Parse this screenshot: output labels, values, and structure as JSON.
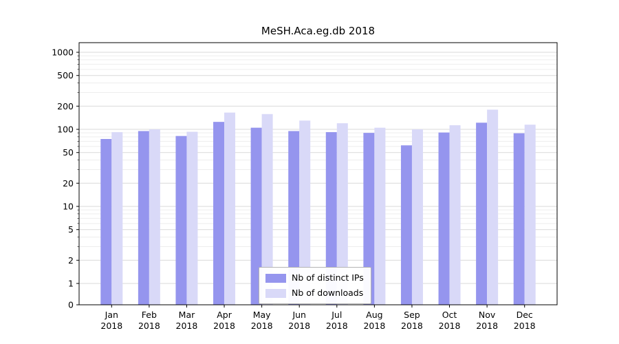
{
  "figure": {
    "background": "#ffffff",
    "text_color": "#000000",
    "major_grid_color": "#d9d9d9",
    "minor_grid_color": "#ededed",
    "spine_color": "#000000"
  },
  "chart_data": {
    "type": "bar",
    "title": "MeSH.Aca.eg.db 2018",
    "categories": [
      "Jan",
      "Feb",
      "Mar",
      "Apr",
      "May",
      "Jun",
      "Jul",
      "Aug",
      "Sep",
      "Oct",
      "Nov",
      "Dec"
    ],
    "category_year": "2018",
    "series": [
      {
        "name": "Nb of distinct IPs",
        "color": "#9595ee",
        "values": [
          75,
          95,
          82,
          125,
          105,
          95,
          92,
          90,
          62,
          91,
          122,
          89
        ]
      },
      {
        "name": "Nb of downloads",
        "color": "#d9d9f8",
        "values": [
          92,
          100,
          93,
          165,
          158,
          130,
          120,
          105,
          100,
          113,
          180,
          115
        ]
      }
    ],
    "xlabel": "",
    "ylabel": "",
    "yscale": "symlog",
    "yticks": [
      0,
      1,
      2,
      5,
      10,
      20,
      50,
      100,
      200,
      500,
      1000
    ],
    "minor_yticks": [
      3,
      4,
      6,
      7,
      8,
      9,
      30,
      40,
      60,
      70,
      80,
      90,
      300,
      400,
      600,
      700,
      800,
      900
    ],
    "ylim": [
      0,
      1300
    ],
    "grid": true,
    "legend_position": "lower center"
  }
}
